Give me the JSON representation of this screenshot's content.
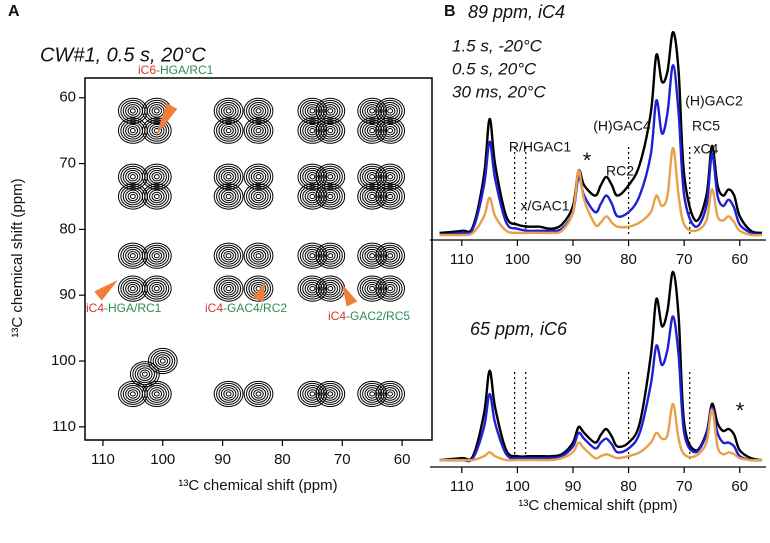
{
  "chart_data": [
    {
      "type": "contour",
      "panel_label": "A",
      "title": "CW#1, 0.5 s, 20°C",
      "x_label": "¹³C chemical shift (ppm)",
      "y_label": "¹³C chemical shift (ppm)",
      "x": [
        105,
        101,
        89,
        84,
        75,
        72,
        65,
        62,
        105,
        101,
        89,
        84,
        75,
        72,
        65,
        62,
        105,
        101,
        89,
        84,
        75,
        72,
        65,
        62,
        105,
        101,
        89,
        84,
        75,
        72,
        65,
        62,
        105,
        101,
        89,
        84,
        75,
        72,
        65,
        62,
        105,
        101,
        89,
        84,
        75,
        72,
        65,
        62,
        105,
        101,
        89,
        84,
        75,
        72,
        65,
        62,
        103,
        100
      ],
      "y": [
        62,
        62,
        62,
        62,
        62,
        62,
        62,
        62,
        65,
        65,
        65,
        65,
        65,
        65,
        65,
        65,
        72,
        72,
        72,
        72,
        72,
        72,
        72,
        72,
        75,
        75,
        75,
        75,
        75,
        75,
        75,
        75,
        84,
        84,
        84,
        84,
        84,
        84,
        84,
        84,
        89,
        89,
        89,
        89,
        89,
        89,
        89,
        89,
        105,
        105,
        105,
        105,
        105,
        105,
        105,
        105,
        102,
        100
      ],
      "xlim": [
        113,
        55
      ],
      "ylim": [
        112,
        57
      ],
      "xticks": [
        110,
        100,
        90,
        80,
        70,
        60
      ],
      "yticks": [
        60,
        70,
        80,
        90,
        100,
        110
      ],
      "annotations": [
        {
          "prefix": "iC6",
          "text": "-HGA/RC1"
        },
        {
          "prefix": "iC4",
          "text": "-HGA/RC1"
        },
        {
          "prefix": "iC4",
          "text": "-GAC4/RC2"
        },
        {
          "prefix": "iC4",
          "text": "-GAC2/RC5"
        }
      ],
      "annotation_colors": [
        "#d9332b",
        "#2e8b57",
        "#f07d3a"
      ]
    },
    {
      "type": "line",
      "panel_label": "B",
      "title": "89 ppm, iC4",
      "legend": "upper left",
      "x": [
        114,
        110,
        108,
        106,
        105,
        104,
        102,
        100,
        98,
        96,
        94,
        92,
        90,
        89,
        88,
        86,
        85,
        84,
        83,
        82,
        80,
        78,
        76,
        75,
        74,
        73,
        72,
        71,
        70,
        68,
        66,
        65,
        64,
        63,
        62,
        61,
        60,
        58,
        56
      ],
      "series": [
        {
          "name": "1.5 s, -20°C",
          "color": "#000000",
          "values": [
            0.02,
            0.03,
            0.05,
            0.3,
            0.57,
            0.35,
            0.1,
            0.06,
            0.05,
            0.05,
            0.04,
            0.06,
            0.15,
            0.32,
            0.25,
            0.2,
            0.25,
            0.29,
            0.25,
            0.2,
            0.25,
            0.35,
            0.6,
            0.88,
            0.75,
            0.8,
            0.99,
            0.8,
            0.3,
            0.08,
            0.2,
            0.44,
            0.25,
            0.2,
            0.23,
            0.2,
            0.1,
            0.03,
            0.02
          ]
        },
        {
          "name": "0.5 s, 20°C",
          "color": "#1f1fd6",
          "values": [
            0.01,
            0.02,
            0.04,
            0.25,
            0.46,
            0.28,
            0.07,
            0.04,
            0.03,
            0.03,
            0.03,
            0.04,
            0.12,
            0.29,
            0.2,
            0.12,
            0.16,
            0.2,
            0.16,
            0.1,
            0.12,
            0.2,
            0.4,
            0.66,
            0.5,
            0.6,
            0.83,
            0.6,
            0.2,
            0.05,
            0.15,
            0.4,
            0.2,
            0.15,
            0.18,
            0.14,
            0.06,
            0.02,
            0.01
          ]
        },
        {
          "name": "30 ms, 20°C",
          "color": "#e8a04a",
          "values": [
            0.01,
            0.01,
            0.02,
            0.1,
            0.19,
            0.1,
            0.03,
            0.02,
            0.02,
            0.02,
            0.02,
            0.03,
            0.12,
            0.32,
            0.18,
            0.06,
            0.07,
            0.1,
            0.07,
            0.05,
            0.05,
            0.07,
            0.12,
            0.2,
            0.15,
            0.2,
            0.43,
            0.2,
            0.06,
            0.03,
            0.08,
            0.23,
            0.1,
            0.08,
            0.1,
            0.07,
            0.03,
            0.01,
            0.01
          ]
        }
      ],
      "markers": [
        100.5,
        98.5,
        80,
        69
      ],
      "annotations": [
        "R/HGAC1",
        "x/GAC1",
        "*",
        "(H)GAC4",
        "RC2",
        "(H)GAC2",
        "RC5",
        "xC4"
      ],
      "xlim": [
        115,
        56
      ],
      "ylim": [
        0,
        1
      ],
      "xticks": [
        110,
        100,
        90,
        80,
        70,
        60
      ]
    },
    {
      "type": "line",
      "title": "65 ppm, iC6",
      "x_label": "¹³C chemical shift (ppm)",
      "x": [
        114,
        110,
        108,
        106,
        105,
        104,
        102,
        100,
        98,
        96,
        94,
        92,
        90,
        89,
        88,
        86,
        85,
        84,
        83,
        82,
        80,
        78,
        76,
        75,
        74,
        73,
        72,
        71,
        70,
        68,
        66,
        65,
        64,
        63,
        62,
        61,
        60,
        58,
        56
      ],
      "series": [
        {
          "color": "#000000",
          "values": [
            0.01,
            0.02,
            0.03,
            0.25,
            0.47,
            0.28,
            0.06,
            0.03,
            0.03,
            0.03,
            0.03,
            0.04,
            0.1,
            0.18,
            0.15,
            0.1,
            0.14,
            0.17,
            0.13,
            0.08,
            0.1,
            0.2,
            0.55,
            0.84,
            0.7,
            0.78,
            0.98,
            0.75,
            0.2,
            0.06,
            0.15,
            0.3,
            0.2,
            0.16,
            0.17,
            0.14,
            0.06,
            0.02,
            0.01
          ]
        },
        {
          "color": "#1f1fd6",
          "values": [
            0.01,
            0.01,
            0.02,
            0.18,
            0.35,
            0.2,
            0.04,
            0.02,
            0.02,
            0.02,
            0.02,
            0.03,
            0.08,
            0.15,
            0.12,
            0.07,
            0.1,
            0.12,
            0.09,
            0.05,
            0.07,
            0.15,
            0.4,
            0.6,
            0.5,
            0.58,
            0.75,
            0.55,
            0.15,
            0.05,
            0.14,
            0.28,
            0.15,
            0.1,
            0.1,
            0.08,
            0.03,
            0.01,
            0.01
          ]
        },
        {
          "color": "#e8a04a",
          "values": [
            0.01,
            0.01,
            0.01,
            0.03,
            0.05,
            0.03,
            0.01,
            0.01,
            0.01,
            0.01,
            0.01,
            0.02,
            0.05,
            0.1,
            0.07,
            0.02,
            0.03,
            0.04,
            0.03,
            0.02,
            0.03,
            0.05,
            0.1,
            0.15,
            0.12,
            0.14,
            0.3,
            0.12,
            0.04,
            0.03,
            0.1,
            0.27,
            0.08,
            0.04,
            0.05,
            0.04,
            0.02,
            0.01,
            0.01
          ]
        }
      ],
      "markers": [
        100.5,
        98.5,
        80,
        69
      ],
      "annotations": [
        "*"
      ],
      "xlim": [
        115,
        56
      ],
      "ylim": [
        0,
        1
      ],
      "xticks": [
        110,
        100,
        90,
        80,
        70,
        60
      ]
    }
  ]
}
